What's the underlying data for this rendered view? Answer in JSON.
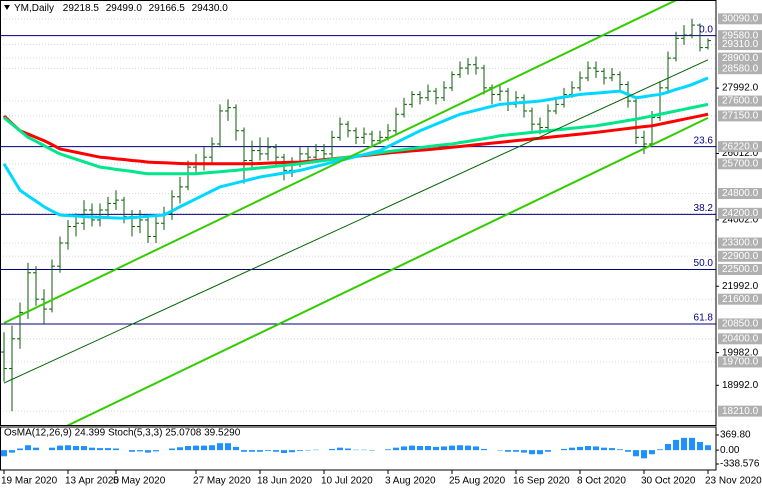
{
  "chart_data": {
    "type": "candlestick",
    "title": "YM,Daily",
    "title_values": [
      "29218.5",
      "29499.0",
      "29166.5",
      "29430.0"
    ],
    "categories": [
      "19 Mar 2020",
      null,
      null,
      null,
      null,
      null,
      null,
      null,
      "13 Apr 2020",
      null,
      null,
      null,
      null,
      null,
      "5 May 2020",
      null,
      null,
      null,
      null,
      null,
      null,
      null,
      null,
      null,
      "27 May 2020",
      null,
      null,
      null,
      null,
      null,
      null,
      null,
      "18 Jun 2020",
      null,
      null,
      null,
      null,
      null,
      null,
      null,
      "10 Jul 2020",
      null,
      null,
      null,
      null,
      null,
      null,
      null,
      "3 Aug 2020",
      null,
      null,
      null,
      null,
      null,
      null,
      null,
      "25 Aug 2020",
      null,
      null,
      null,
      null,
      null,
      null,
      null,
      "16 Sep 2020",
      null,
      null,
      null,
      null,
      null,
      null,
      null,
      "8 Oct 2020",
      null,
      null,
      null,
      null,
      null,
      null,
      null,
      "30 Oct 2020",
      null,
      null,
      null,
      null,
      null,
      null,
      null,
      "23 Nov 2020"
    ],
    "open": [
      20000,
      19500,
      20400,
      21200,
      22400,
      21600,
      21300,
      22600,
      23300,
      23800,
      23900,
      24300,
      24000,
      24300,
      24500,
      24600,
      24100,
      23800,
      24000,
      23500,
      23900,
      24200,
      24700,
      25000,
      25600,
      25700,
      25900,
      26300,
      27300,
      27400,
      26700,
      25800,
      26100,
      26000,
      26200,
      25900,
      25500,
      25700,
      26000,
      25900,
      26100,
      26000,
      26500,
      26900,
      26700,
      26500,
      26600,
      26400,
      26500,
      26700,
      27200,
      27500,
      27800,
      27700,
      27900,
      27700,
      28000,
      28400,
      28600,
      28700,
      28600,
      28000,
      27800,
      27900,
      27500,
      27700,
      27300,
      26900,
      26800,
      27300,
      27500,
      27800,
      28000,
      28300,
      28600,
      28500,
      28300,
      28400,
      28100,
      27600,
      26500,
      26300,
      27100,
      28000,
      28900,
      29500,
      29600,
      29900,
      29218.5
    ],
    "high": [
      20600,
      20800,
      21500,
      22700,
      22600,
      21900,
      22800,
      23500,
      24000,
      24200,
      24600,
      24500,
      24500,
      24700,
      24900,
      24700,
      24300,
      24300,
      24100,
      24100,
      24400,
      24900,
      25300,
      25800,
      26000,
      26200,
      26500,
      27500,
      27650,
      27500,
      26800,
      26400,
      26500,
      26500,
      26300,
      26000,
      25900,
      26200,
      26200,
      26300,
      26300,
      26700,
      27100,
      27000,
      26800,
      26800,
      26700,
      26700,
      26900,
      27400,
      27700,
      27900,
      27900,
      28100,
      28000,
      28200,
      28500,
      28800,
      28900,
      28950,
      28700,
      28100,
      28100,
      28000,
      27900,
      27800,
      27400,
      27100,
      27500,
      27700,
      28000,
      28200,
      28500,
      28800,
      28800,
      28600,
      28600,
      28500,
      28200,
      27700,
      26700,
      27300,
      28200,
      29100,
      29700,
      29900,
      30090,
      29950,
      29499
    ],
    "low": [
      19100,
      18210,
      20100,
      21000,
      21400,
      20850,
      21200,
      22400,
      23100,
      23500,
      23700,
      23800,
      23800,
      24100,
      24300,
      23900,
      23500,
      23600,
      23300,
      23300,
      23700,
      24000,
      24500,
      24900,
      25400,
      25500,
      25700,
      26200,
      27000,
      26400,
      25100,
      25500,
      25800,
      25800,
      25600,
      25200,
      25300,
      25600,
      25700,
      25800,
      25800,
      25900,
      26400,
      26500,
      26300,
      26300,
      26200,
      26300,
      26400,
      26600,
      27100,
      27400,
      27500,
      27600,
      27500,
      27600,
      27900,
      28300,
      28400,
      28400,
      27800,
      27500,
      27600,
      27300,
      27400,
      27100,
      26700,
      26600,
      26700,
      27200,
      27400,
      27700,
      27900,
      28200,
      28300,
      28100,
      28200,
      27900,
      27400,
      26300,
      26000,
      26200,
      27000,
      27900,
      28800,
      29300,
      29500,
      29100,
      29166.5
    ],
    "close": [
      19500,
      20400,
      21200,
      22400,
      21600,
      21300,
      22600,
      23300,
      23800,
      23900,
      24300,
      24000,
      24300,
      24500,
      24600,
      24100,
      23800,
      24000,
      23500,
      23900,
      24200,
      24700,
      25000,
      25600,
      25700,
      25900,
      26300,
      27300,
      27400,
      26700,
      25800,
      26100,
      26000,
      26200,
      25900,
      25500,
      25700,
      26000,
      25900,
      26100,
      26000,
      26500,
      26900,
      26700,
      26500,
      26600,
      26400,
      26500,
      26700,
      27200,
      27500,
      27800,
      27700,
      27900,
      27700,
      28000,
      28400,
      28600,
      28700,
      28600,
      28000,
      27800,
      27900,
      27500,
      27700,
      27300,
      26900,
      26800,
      27300,
      27500,
      27800,
      28000,
      28300,
      28600,
      28500,
      28300,
      28400,
      28100,
      27600,
      26500,
      26300,
      27100,
      28000,
      28900,
      29500,
      29600,
      29900,
      29218.5,
      29430
    ],
    "bar_color": "#0b5d0b",
    "ylim": [
      17790,
      30660
    ],
    "yticks": [
      {
        "value": 27992,
        "label": "27992.0"
      },
      {
        "value": 26012,
        "label": "26012.0"
      },
      {
        "value": 24002,
        "label": "24002.0"
      },
      {
        "value": 21992,
        "label": "21992.0"
      },
      {
        "value": 19982,
        "label": "19982.0"
      },
      {
        "value": 18992,
        "label": "18992.0"
      }
    ],
    "levels": [
      {
        "value": 30090,
        "label": "30090.0"
      },
      {
        "value": 29580,
        "label": "29580.0"
      },
      {
        "value": 29310,
        "label": "29310.0"
      },
      {
        "value": 28900,
        "label": "28900.0"
      },
      {
        "value": 28580,
        "label": "28580.0"
      },
      {
        "value": 27600,
        "label": "27600.0"
      },
      {
        "value": 27150,
        "label": "27150.0"
      },
      {
        "value": 26220,
        "label": "26220.0"
      },
      {
        "value": 25700,
        "label": "25700.0"
      },
      {
        "value": 24800,
        "label": "24800.0"
      },
      {
        "value": 24200,
        "label": "24200.0"
      },
      {
        "value": 23300,
        "label": "23300.0"
      },
      {
        "value": 22900,
        "label": "22900.0"
      },
      {
        "value": 22500,
        "label": "22500.0"
      },
      {
        "value": 21600,
        "label": "21600.0"
      },
      {
        "value": 20850,
        "label": "20850.0"
      },
      {
        "value": 20400,
        "label": "20400.0"
      },
      {
        "value": 19700,
        "label": "19700.0"
      },
      {
        "value": 18210,
        "label": "18210.0"
      }
    ],
    "fib_color": "#000080",
    "fib_levels": [
      {
        "value": 29580,
        "label": "0.0"
      },
      {
        "value": 26220,
        "label": "23.6"
      },
      {
        "value": 24170,
        "label": "38.2"
      },
      {
        "value": 22500,
        "label": "50.0"
      },
      {
        "value": 20850,
        "label": "61.8"
      }
    ],
    "moving_averages": [
      {
        "color": "#ff0000",
        "values": [
          27150,
          26920,
          26700,
          26600,
          26500,
          26400,
          26280,
          26150,
          26100,
          26050,
          26000,
          25950,
          25900,
          25880,
          25850,
          25830,
          25800,
          25780,
          25750,
          25740,
          25730,
          25720,
          25710,
          25700,
          25700,
          25700,
          25700,
          25700,
          25700,
          25700,
          25700,
          25700,
          25710,
          25720,
          25730,
          25740,
          25745,
          25750,
          25775,
          25800,
          25825,
          25850,
          25875,
          25900,
          25925,
          25950,
          25975,
          26000,
          26025,
          26050,
          26070,
          26090,
          26110,
          26130,
          26150,
          26175,
          26200,
          26225,
          26250,
          26275,
          26300,
          26325,
          26350,
          26375,
          26400,
          26425,
          26450,
          26475,
          26500,
          26525,
          26550,
          26575,
          26600,
          26625,
          26650,
          26680,
          26710,
          26740,
          26770,
          26800,
          26825,
          26850,
          26900,
          26950,
          27000,
          27050,
          27100,
          27150,
          27200
        ]
      },
      {
        "color": "#00e68a",
        "values": [
          27100,
          26900,
          26700,
          26500,
          26380,
          26250,
          26120,
          26000,
          25920,
          25840,
          25760,
          25680,
          25600,
          25570,
          25530,
          25500,
          25470,
          25430,
          25400,
          25400,
          25400,
          25400,
          25400,
          25400,
          25400,
          25420,
          25440,
          25460,
          25480,
          25500,
          25530,
          25550,
          25575,
          25600,
          25625,
          25650,
          25675,
          25700,
          25735,
          25770,
          25800,
          25835,
          25870,
          25900,
          25935,
          25970,
          26000,
          26035,
          26070,
          26100,
          26130,
          26160,
          26190,
          26220,
          26250,
          26275,
          26300,
          26340,
          26380,
          26420,
          26460,
          26500,
          26550,
          26575,
          26600,
          26625,
          26650,
          26675,
          26700,
          26725,
          26750,
          26775,
          26800,
          26825,
          26850,
          26890,
          26930,
          26970,
          27010,
          27050,
          27100,
          27150,
          27200,
          27250,
          27300,
          27350,
          27400,
          27450,
          27500
        ]
      },
      {
        "color": "#00d8ff",
        "values": [
          25700,
          25300,
          24900,
          24730,
          24570,
          24400,
          24270,
          24150,
          24130,
          24120,
          24100,
          24090,
          24080,
          24070,
          24060,
          24050,
          24070,
          24090,
          24110,
          24130,
          24150,
          24270,
          24400,
          24520,
          24640,
          24760,
          24880,
          25000,
          25060,
          25120,
          25180,
          25240,
          25300,
          25340,
          25380,
          25420,
          25460,
          25500,
          25560,
          25620,
          25680,
          25740,
          25800,
          25860,
          25920,
          25980,
          26040,
          26100,
          26220,
          26340,
          26460,
          26580,
          26700,
          26800,
          26900,
          27000,
          27100,
          27200,
          27260,
          27320,
          27380,
          27440,
          27500,
          27520,
          27540,
          27560,
          27580,
          27600,
          27640,
          27680,
          27720,
          27760,
          27800,
          27820,
          27840,
          27860,
          27880,
          27900,
          27800,
          27700,
          27730,
          27770,
          27800,
          27870,
          27950,
          28020,
          28100,
          28200,
          28300
        ]
      }
    ],
    "trendlines": [
      {
        "color": "#33cc00",
        "width": 2,
        "values": [
          20878,
          31120
        ]
      },
      {
        "color": "#33cc00",
        "width": 2,
        "values": [
          16848,
          27090
        ]
      },
      {
        "color": "#006400",
        "width": 1,
        "values": [
          19060,
          28848
        ]
      }
    ],
    "oscillator": {
      "title": "OsMA(12,26,9) 24.399 Stoch(5,3,3) 25.0708 39.5290",
      "color": "#1e90ff",
      "ylim": [
        -338.576,
        369.8
      ],
      "yticks": [
        {
          "value": 369.8,
          "label": "369.80"
        },
        {
          "value": 0,
          "label": "0.00"
        },
        -338.576
      ],
      "values": [
        -150,
        -60,
        40,
        120,
        60,
        0,
        60,
        110,
        120,
        100,
        100,
        60,
        50,
        50,
        40,
        0,
        -40,
        -30,
        -60,
        -30,
        0,
        40,
        70,
        100,
        110,
        110,
        120,
        170,
        170,
        80,
        -40,
        -40,
        -40,
        -20,
        -40,
        -70,
        -50,
        -20,
        -10,
        10,
        0,
        30,
        60,
        40,
        10,
        10,
        -10,
        0,
        20,
        60,
        90,
        110,
        100,
        100,
        80,
        90,
        110,
        120,
        110,
        90,
        30,
        0,
        -10,
        -40,
        -40,
        -60,
        -100,
        -100,
        -40,
        0,
        30,
        60,
        80,
        100,
        90,
        60,
        50,
        20,
        -40,
        -150,
        -200,
        -100,
        20,
        150,
        250,
        300,
        300,
        200,
        120
      ]
    }
  }
}
